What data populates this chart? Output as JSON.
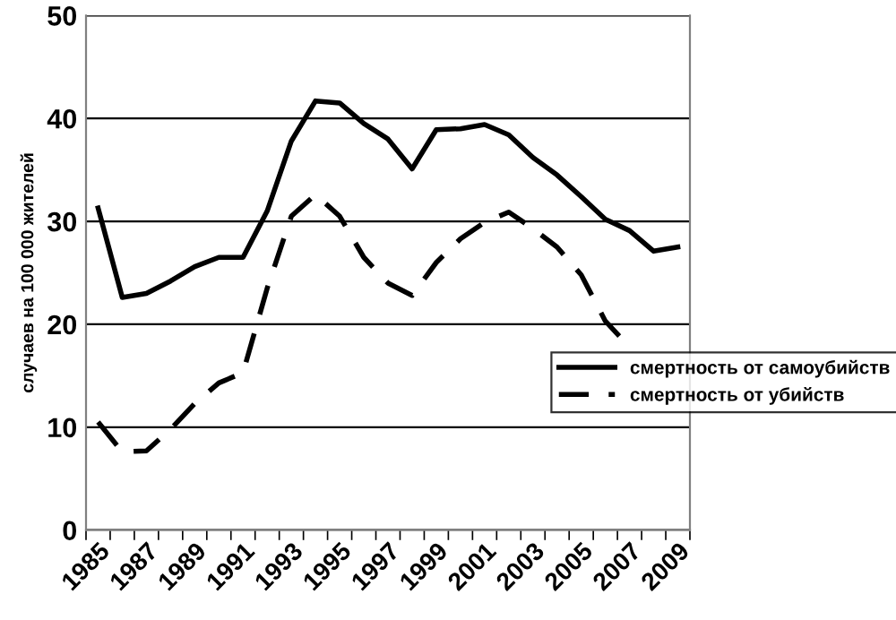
{
  "chart_data": {
    "type": "line",
    "ylabel": "случаев на 100 000 жителей",
    "categories": [
      "1985",
      null,
      "1987",
      null,
      "1989",
      null,
      "1991",
      null,
      "1993",
      null,
      "1995",
      null,
      "1997",
      null,
      "1999",
      null,
      "2001",
      null,
      "2003",
      null,
      "2005",
      null,
      "2007",
      null,
      "2009"
    ],
    "series": [
      {
        "name": "смертность от самоубийств",
        "color": "#000000",
        "line_style": "solid",
        "values": [
          31.3,
          22.6,
          23.0,
          24.2,
          25.6,
          26.5,
          26.5,
          31.0,
          37.8,
          41.7,
          41.5,
          39.5,
          38.0,
          35.1,
          38.9,
          39.0,
          39.4,
          38.4,
          36.2,
          34.5,
          32.4,
          30.2,
          29.1,
          27.1,
          27.5
        ]
      },
      {
        "name": "смертность от убийств",
        "color": "#000000",
        "line_style": "dashed",
        "values": [
          10.5,
          7.6,
          7.7,
          9.8,
          12.3,
          14.3,
          15.3,
          23.5,
          30.5,
          32.6,
          30.5,
          26.5,
          24.0,
          22.8,
          26.0,
          28.3,
          29.9,
          30.9,
          29.3,
          27.5,
          24.8,
          20.3,
          17.8,
          null,
          null
        ]
      }
    ],
    "ylim": [
      0,
      50
    ],
    "yticks": [
      0,
      10,
      20,
      30,
      40,
      50
    ],
    "grid": "y",
    "legend": "right",
    "marker": "none"
  }
}
